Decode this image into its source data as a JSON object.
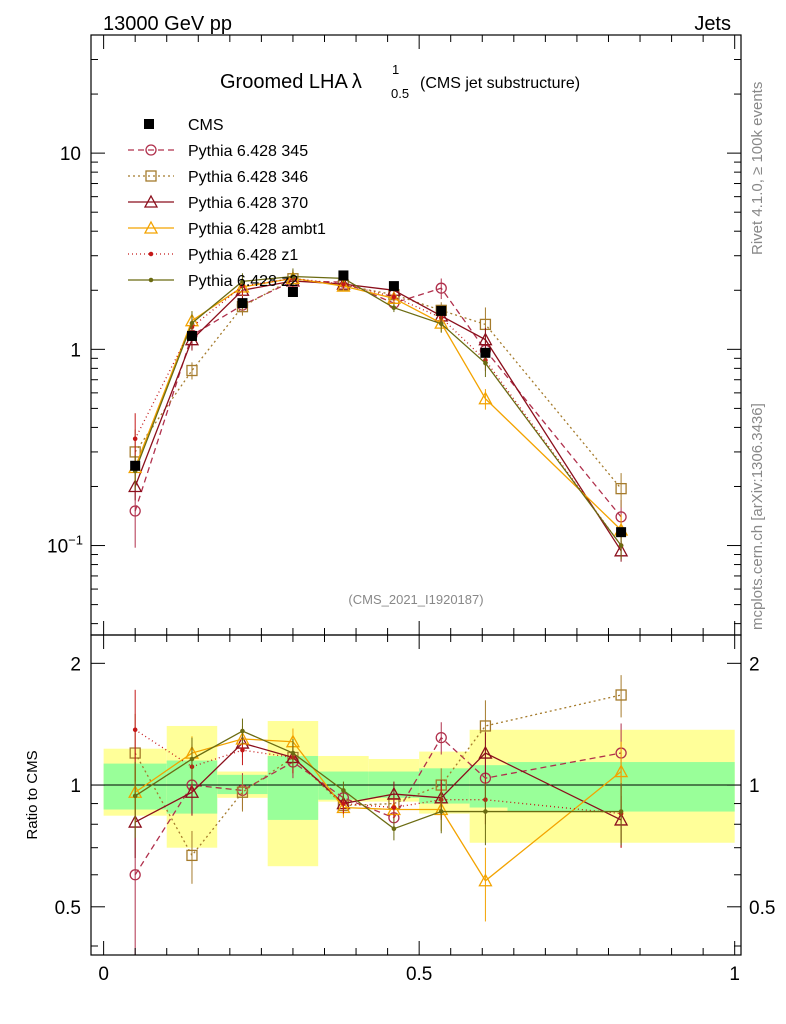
{
  "header": {
    "left": "13000 GeV pp",
    "right": "Jets",
    "title_main": "Groomed LHA",
    "title_lambda": "λ",
    "title_sup": "1",
    "title_sub": "0.5",
    "title_note": "(CMS jet substructure)",
    "analysis": "(CMS_2021_I1920187)",
    "side_rivet": "Rivet 4.1.0, ≥ 100k events",
    "side_site": "mcplots.cern.ch [arXiv:1306.3436]"
  },
  "chart_data": {
    "type": "scatter",
    "main": {
      "yscale": "log",
      "ylim": [
        0.035,
        40
      ],
      "yticks": [
        {
          "value": 10,
          "label": "10"
        },
        {
          "value": 1,
          "label": "1"
        },
        {
          "value": 0.1,
          "label_base": "10",
          "label_exp": "−1"
        }
      ]
    },
    "ratio": {
      "ylabel": "Ratio to CMS",
      "ylim": [
        0.38,
        2.35
      ],
      "yticks": [
        {
          "value": 0.5,
          "label": "0.5"
        },
        {
          "value": 1,
          "label": "1"
        },
        {
          "value": 2,
          "label": "2"
        }
      ]
    },
    "xlim": [
      -0.02,
      1.01
    ],
    "xticks": [
      {
        "value": 0,
        "label": "0"
      },
      {
        "value": 0.5,
        "label": "0.5"
      },
      {
        "value": 1,
        "label": "1"
      }
    ],
    "bins": [
      {
        "lo": 0.0,
        "hi": 0.1
      },
      {
        "lo": 0.1,
        "hi": 0.18
      },
      {
        "lo": 0.18,
        "hi": 0.26
      },
      {
        "lo": 0.26,
        "hi": 0.34
      },
      {
        "lo": 0.34,
        "hi": 0.42
      },
      {
        "lo": 0.42,
        "hi": 0.5
      },
      {
        "lo": 0.5,
        "hi": 0.58
      },
      {
        "lo": 0.58,
        "hi": 0.64
      },
      {
        "lo": 0.64,
        "hi": 1.0
      }
    ],
    "x": [
      0.05,
      0.14,
      0.22,
      0.3,
      0.38,
      0.46,
      0.535,
      0.605,
      0.82
    ],
    "data": {
      "name": "CMS",
      "values": [
        0.255,
        1.17,
        1.72,
        1.96,
        2.38,
        2.1,
        1.57,
        0.96,
        0.117
      ],
      "band_inner": [
        [
          0.87,
          1.13
        ],
        [
          0.85,
          1.15
        ],
        [
          0.95,
          1.06
        ],
        [
          0.82,
          1.18
        ],
        [
          0.92,
          1.08
        ],
        [
          0.93,
          1.08
        ],
        [
          0.9,
          1.1
        ],
        [
          0.88,
          1.12
        ],
        [
          0.86,
          1.14
        ]
      ],
      "band_outer": [
        [
          0.84,
          1.23
        ],
        [
          0.7,
          1.4
        ],
        [
          0.93,
          1.08
        ],
        [
          0.63,
          1.44
        ],
        [
          0.91,
          1.18
        ],
        [
          0.91,
          1.16
        ],
        [
          0.85,
          1.21
        ],
        [
          0.72,
          1.37
        ],
        [
          0.72,
          1.37
        ]
      ]
    },
    "series": [
      {
        "name": "Pythia 6.428 345",
        "color": "#b0304c",
        "dash": "6,4",
        "marker": "circle",
        "values": [
          0.15,
          1.18,
          1.68,
          2.23,
          2.2,
          1.72,
          2.05,
          0.99,
          0.14
        ],
        "ratio": [
          0.6,
          1.0,
          0.97,
          1.14,
          0.93,
          0.83,
          1.31,
          1.04,
          1.2
        ],
        "rerr": [
          0.35,
          0.15,
          0.1,
          0.1,
          0.05,
          0.05,
          0.12,
          0.15,
          0.22
        ]
      },
      {
        "name": "Pythia 6.428 346",
        "color": "#a57b2c",
        "dash": "2,3",
        "marker": "square",
        "values": [
          0.3,
          0.78,
          1.65,
          2.29,
          2.12,
          1.9,
          1.58,
          1.34,
          0.195
        ],
        "ratio": [
          1.2,
          0.67,
          0.96,
          1.17,
          0.89,
          0.9,
          1.0,
          1.4,
          1.67
        ],
        "rerr": [
          0.3,
          0.1,
          0.1,
          0.1,
          0.05,
          0.05,
          0.1,
          0.22,
          0.2
        ]
      },
      {
        "name": "Pythia 6.428 370",
        "color": "#8b0f1c",
        "dash": "",
        "marker": "triangle",
        "values": [
          0.2,
          1.12,
          2.0,
          2.23,
          2.15,
          2.0,
          1.48,
          1.12,
          0.094
        ],
        "ratio": [
          0.81,
          0.96,
          1.27,
          1.17,
          0.9,
          0.95,
          0.93,
          1.2,
          0.82
        ],
        "rerr": [
          0.15,
          0.12,
          0.1,
          0.1,
          0.05,
          0.07,
          0.1,
          0.15,
          0.12
        ]
      },
      {
        "name": "Pythia 6.428 ambt1",
        "color": "#f3a300",
        "dash": "",
        "marker": "triangle",
        "values": [
          0.25,
          1.4,
          2.08,
          2.3,
          2.1,
          1.82,
          1.36,
          0.56,
          0.12
        ],
        "ratio": [
          0.96,
          1.2,
          1.3,
          1.28,
          0.88,
          0.87,
          0.87,
          0.58,
          1.08
        ],
        "rerr": [
          0.15,
          0.12,
          0.1,
          0.1,
          0.05,
          0.05,
          0.1,
          0.12,
          0.2
        ]
      },
      {
        "name": "Pythia 6.428 z1",
        "color": "#c41818",
        "dash": "1,3",
        "marker": "dot",
        "values": [
          0.35,
          1.3,
          2.1,
          2.3,
          2.15,
          1.85,
          1.45,
          0.88,
          0.1
        ],
        "ratio": [
          1.37,
          1.11,
          1.22,
          1.17,
          0.9,
          0.88,
          0.92,
          0.92,
          0.85
        ],
        "rerr": [
          0.35,
          0.15,
          0.1,
          0.1,
          0.05,
          0.05,
          0.1,
          0.12,
          0.15
        ]
      },
      {
        "name": "Pythia 6.428 z2",
        "color": "#6b6b12",
        "dash": "",
        "marker": "dot",
        "values": [
          0.24,
          1.36,
          2.22,
          2.35,
          2.3,
          1.63,
          1.35,
          0.85,
          0.1
        ],
        "ratio": [
          0.94,
          1.16,
          1.36,
          1.2,
          0.97,
          0.78,
          0.86,
          0.86,
          0.86
        ],
        "rerr": [
          0.2,
          0.15,
          0.1,
          0.1,
          0.05,
          0.05,
          0.1,
          0.15,
          0.15
        ]
      }
    ]
  }
}
